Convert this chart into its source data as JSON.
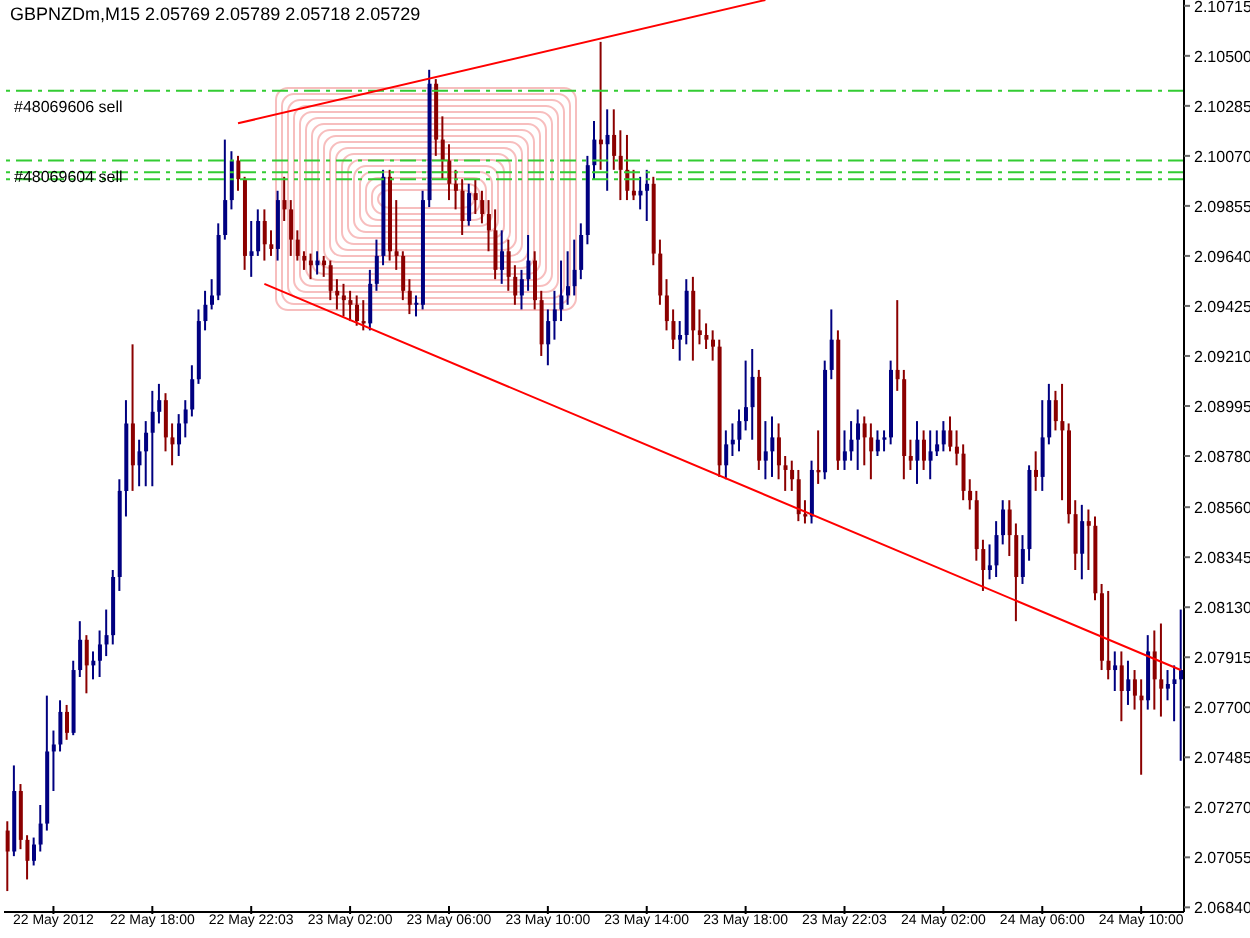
{
  "chart_data": {
    "type": "candlestick",
    "title": "GBPNZDm,M15  2.05769 2.05789 2.05718 2.05729",
    "categories": [
      null,
      null,
      null,
      null,
      null,
      null,
      null,
      "22 May 2012",
      null,
      null,
      null,
      null,
      null,
      null,
      null,
      null,
      null,
      null,
      null,
      null,
      null,
      null,
      "22 May 18:00",
      null,
      null,
      null,
      null,
      null,
      null,
      null,
      null,
      null,
      null,
      null,
      null,
      null,
      null,
      "22 May 22:03",
      null,
      null,
      null,
      null,
      null,
      null,
      null,
      null,
      null,
      null,
      null,
      null,
      null,
      null,
      "23 May 02:00",
      null,
      null,
      null,
      null,
      null,
      null,
      null,
      null,
      null,
      null,
      null,
      null,
      null,
      null,
      "23 May 06:00",
      null,
      null,
      null,
      null,
      null,
      null,
      null,
      null,
      null,
      null,
      null,
      null,
      null,
      null,
      "23 May 10:00",
      null,
      null,
      null,
      null,
      null,
      null,
      null,
      null,
      null,
      null,
      null,
      null,
      null,
      null,
      "23 May 14:00",
      null,
      null,
      null,
      null,
      null,
      null,
      null,
      null,
      null,
      null,
      null,
      null,
      null,
      null,
      "23 May 18:00",
      null,
      null,
      null,
      null,
      null,
      null,
      null,
      null,
      null,
      null,
      null,
      null,
      null,
      null,
      "23 May 22:03",
      null,
      null,
      null,
      null,
      null,
      null,
      null,
      null,
      null,
      null,
      null,
      null,
      null,
      null,
      "24 May 02:00",
      null,
      null,
      null,
      null,
      null,
      null,
      null,
      null,
      null,
      null,
      null,
      null,
      null,
      null,
      "24 May 06:00",
      null,
      null,
      null,
      null,
      null,
      null,
      null,
      null,
      null,
      null,
      null,
      null,
      null,
      null,
      "24 May 10:00",
      null,
      null,
      null,
      null,
      null,
      null
    ],
    "ohlc": [
      [
        2.0717,
        2.0721,
        2.0691,
        2.0708
      ],
      [
        2.0708,
        2.0745,
        2.0706,
        2.0734
      ],
      [
        2.0734,
        2.0737,
        2.0709,
        2.0713
      ],
      [
        2.0713,
        2.0715,
        2.0696,
        2.0704
      ],
      [
        2.0704,
        2.0714,
        2.0702,
        2.0711
      ],
      [
        2.0711,
        2.0728,
        2.0708,
        2.072
      ],
      [
        2.072,
        2.0775,
        2.0717,
        2.0751
      ],
      [
        2.0751,
        2.076,
        2.0734,
        2.0754
      ],
      [
        2.0754,
        2.0773,
        2.0751,
        2.0768
      ],
      [
        2.0768,
        2.0771,
        2.0756,
        2.0759
      ],
      [
        2.0759,
        2.079,
        2.0758,
        2.0786
      ],
      [
        2.0786,
        2.0807,
        2.0783,
        2.0799
      ],
      [
        2.0799,
        2.0801,
        2.0776,
        2.0788
      ],
      [
        2.0788,
        2.0794,
        2.0782,
        2.079
      ],
      [
        2.079,
        2.0803,
        2.0783,
        2.0797
      ],
      [
        2.0797,
        2.0812,
        2.0792,
        2.0801
      ],
      [
        2.0801,
        2.0829,
        2.0797,
        2.0826
      ],
      [
        2.0826,
        2.0868,
        2.082,
        2.0863
      ],
      [
        2.0863,
        2.0902,
        2.0852,
        2.0892
      ],
      [
        2.0892,
        2.0926,
        2.0863,
        2.0874
      ],
      [
        2.0874,
        2.0885,
        2.0865,
        2.088
      ],
      [
        2.088,
        2.0893,
        2.0865,
        2.0888
      ],
      [
        2.0888,
        2.0906,
        2.0865,
        2.0897
      ],
      [
        2.0897,
        2.0909,
        2.0892,
        2.0902
      ],
      [
        2.0902,
        2.0905,
        2.088,
        2.0886
      ],
      [
        2.0886,
        2.0892,
        2.0874,
        2.0883
      ],
      [
        2.0883,
        2.0896,
        2.0878,
        2.0892
      ],
      [
        2.0892,
        2.0902,
        2.0886,
        2.0898
      ],
      [
        2.0898,
        2.0917,
        2.0895,
        2.0911
      ],
      [
        2.0911,
        2.0941,
        2.0909,
        2.0936
      ],
      [
        2.0936,
        2.0949,
        2.0932,
        2.0943
      ],
      [
        2.0943,
        2.0954,
        2.0941,
        2.0947
      ],
      [
        2.0947,
        2.0978,
        2.0945,
        2.0973
      ],
      [
        2.0973,
        2.1014,
        2.0971,
        2.0988
      ],
      [
        2.0988,
        2.1009,
        2.0984,
        2.1005
      ],
      [
        2.1005,
        2.1007,
        2.0992,
        2.0997
      ],
      [
        2.0997,
        2.0998,
        2.0958,
        2.0964
      ],
      [
        2.0964,
        2.0979,
        2.0955,
        2.0966
      ],
      [
        2.0966,
        2.0984,
        2.0964,
        2.0979
      ],
      [
        2.0979,
        2.0984,
        2.0962,
        2.0969
      ],
      [
        2.0969,
        2.0975,
        2.0964,
        2.0967
      ],
      [
        2.0967,
        2.0992,
        2.0962,
        2.0988
      ],
      [
        2.0988,
        2.0998,
        2.0979,
        2.0984
      ],
      [
        2.0984,
        2.0988,
        2.0964,
        2.0971
      ],
      [
        2.0971,
        2.0975,
        2.0962,
        2.0964
      ],
      [
        2.0964,
        2.0966,
        2.0958,
        2.0962
      ],
      [
        2.0962,
        2.0965,
        2.0954,
        2.096
      ],
      [
        2.096,
        2.0966,
        2.0956,
        2.0962
      ],
      [
        2.0962,
        2.0964,
        2.0955,
        2.096
      ],
      [
        2.096,
        2.0962,
        2.0945,
        2.0949
      ],
      [
        2.0949,
        2.0954,
        2.0941,
        2.0947
      ],
      [
        2.0947,
        2.0952,
        2.0938,
        2.0945
      ],
      [
        2.0945,
        2.0949,
        2.0936,
        2.0943
      ],
      [
        2.0943,
        2.0947,
        2.0934,
        2.0936
      ],
      [
        2.0936,
        2.0945,
        2.0932,
        2.0935
      ],
      [
        2.0935,
        2.0958,
        2.0932,
        2.0952
      ],
      [
        2.0952,
        2.0971,
        2.0949,
        2.0964
      ],
      [
        2.0964,
        2.1001,
        2.096,
        2.0998
      ],
      [
        2.0998,
        2.1001,
        2.0962,
        2.0966
      ],
      [
        2.0966,
        2.0988,
        2.0958,
        2.0964
      ],
      [
        2.0964,
        2.0966,
        2.0945,
        2.0949
      ],
      [
        2.0949,
        2.0954,
        2.0939,
        2.0943
      ],
      [
        2.0943,
        2.0947,
        2.0938,
        2.0943
      ],
      [
        2.0943,
        2.0992,
        2.0941,
        2.0988
      ],
      [
        2.0988,
        2.1044,
        2.0985,
        2.1038
      ],
      [
        2.1038,
        2.104,
        2.1007,
        2.1014
      ],
      [
        2.1014,
        2.1024,
        2.0997,
        2.1005
      ],
      [
        2.1005,
        2.1012,
        2.0988,
        2.0995
      ],
      [
        2.0995,
        2.1001,
        2.0984,
        2.0992
      ],
      [
        2.0992,
        2.0997,
        2.0973,
        2.0979
      ],
      [
        2.0979,
        2.0995,
        2.0977,
        2.0991
      ],
      [
        2.0991,
        2.0997,
        2.0982,
        2.0988
      ],
      [
        2.0988,
        2.0992,
        2.0978,
        2.0982
      ],
      [
        2.0982,
        2.0988,
        2.0966,
        2.0975
      ],
      [
        2.0975,
        2.0984,
        2.0954,
        2.0958
      ],
      [
        2.0958,
        2.0975,
        2.0952,
        2.0966
      ],
      [
        2.0966,
        2.0971,
        2.0949,
        2.0955
      ],
      [
        2.0955,
        2.096,
        2.0943,
        2.0947
      ],
      [
        2.0947,
        2.0958,
        2.0941,
        2.0954
      ],
      [
        2.0954,
        2.0973,
        2.0949,
        2.0962
      ],
      [
        2.0962,
        2.0966,
        2.0941,
        2.0945
      ],
      [
        2.0945,
        2.0949,
        2.0921,
        2.0926
      ],
      [
        2.0926,
        2.0941,
        2.0917,
        2.0936
      ],
      [
        2.0936,
        2.0949,
        2.0928,
        2.0941
      ],
      [
        2.0941,
        2.0962,
        2.0936,
        2.0947
      ],
      [
        2.0947,
        2.0966,
        2.0943,
        2.0951
      ],
      [
        2.0951,
        2.0971,
        2.0947,
        2.0958
      ],
      [
        2.0958,
        2.0978,
        2.0954,
        2.0973
      ],
      [
        2.0973,
        2.1007,
        2.0969,
        2.1003
      ],
      [
        2.1003,
        2.1022,
        2.0997,
        2.1014
      ],
      [
        2.1014,
        2.1056,
        2.1001,
        2.1012
      ],
      [
        2.1012,
        2.1027,
        2.0992,
        2.1016
      ],
      [
        2.1016,
        2.1027,
        2.1001,
        2.1007
      ],
      [
        2.1007,
        2.1018,
        2.0988,
        2.1001
      ],
      [
        2.1001,
        2.1016,
        2.0988,
        2.0992
      ],
      [
        2.0992,
        2.1001,
        2.0988,
        2.099
      ],
      [
        2.099,
        2.0998,
        2.0984,
        2.0992
      ],
      [
        2.0992,
        2.1001,
        2.0979,
        2.0995
      ],
      [
        2.0995,
        2.0998,
        2.096,
        2.0965
      ],
      [
        2.0965,
        2.0971,
        2.0943,
        2.0947
      ],
      [
        2.0947,
        2.0954,
        2.0932,
        2.0936
      ],
      [
        2.0936,
        2.0941,
        2.0924,
        2.0928
      ],
      [
        2.0928,
        2.0936,
        2.0919,
        2.093
      ],
      [
        2.093,
        2.0954,
        2.0926,
        2.0949
      ],
      [
        2.0949,
        2.0955,
        2.0919,
        2.0932
      ],
      [
        2.0932,
        2.0941,
        2.0926,
        2.093
      ],
      [
        2.093,
        2.0935,
        2.0924,
        2.0928
      ],
      [
        2.0928,
        2.0932,
        2.0919,
        2.0925
      ],
      [
        2.0925,
        2.0928,
        2.0869,
        2.0874
      ],
      [
        2.0874,
        2.0889,
        2.0868,
        2.0883
      ],
      [
        2.0883,
        2.0892,
        2.0878,
        2.0885
      ],
      [
        2.0885,
        2.0898,
        2.088,
        2.0893
      ],
      [
        2.0893,
        2.0919,
        2.0889,
        2.0899
      ],
      [
        2.0899,
        2.0924,
        2.0885,
        2.0912
      ],
      [
        2.0912,
        2.0915,
        2.0872,
        2.0876
      ],
      [
        2.0876,
        2.0893,
        2.0868,
        2.088
      ],
      [
        2.088,
        2.0895,
        2.0869,
        2.0886
      ],
      [
        2.0886,
        2.0892,
        2.0868,
        2.0874
      ],
      [
        2.0874,
        2.0878,
        2.0863,
        2.0872
      ],
      [
        2.0872,
        2.0876,
        2.0863,
        2.0868
      ],
      [
        2.0868,
        2.0872,
        2.085,
        2.0853
      ],
      [
        2.0853,
        2.0859,
        2.0849,
        2.0852
      ],
      [
        2.0852,
        2.0876,
        2.0849,
        2.0872
      ],
      [
        2.0872,
        2.0889,
        2.0866,
        2.0871
      ],
      [
        2.0871,
        2.0919,
        2.0868,
        2.0915
      ],
      [
        2.0915,
        2.0941,
        2.0911,
        2.0928
      ],
      [
        2.0928,
        2.0932,
        2.0872,
        2.0876
      ],
      [
        2.0876,
        2.0889,
        2.0872,
        2.088
      ],
      [
        2.088,
        2.0893,
        2.0876,
        2.0885
      ],
      [
        2.0885,
        2.0898,
        2.0872,
        2.0892
      ],
      [
        2.0892,
        2.0895,
        2.0874,
        2.0886
      ],
      [
        2.0886,
        2.0892,
        2.0868,
        2.088
      ],
      [
        2.088,
        2.0889,
        2.0878,
        2.0885
      ],
      [
        2.0885,
        2.0889,
        2.088,
        2.0886
      ],
      [
        2.0886,
        2.0919,
        2.0883,
        2.0915
      ],
      [
        2.0915,
        2.0945,
        2.0906,
        2.0911
      ],
      [
        2.0911,
        2.0915,
        2.0868,
        2.0878
      ],
      [
        2.0878,
        2.0885,
        2.0872,
        2.0876
      ],
      [
        2.0876,
        2.0893,
        2.0866,
        2.0885
      ],
      [
        2.0885,
        2.0889,
        2.0872,
        2.0876
      ],
      [
        2.0876,
        2.0889,
        2.0868,
        2.088
      ],
      [
        2.088,
        2.0889,
        2.0878,
        2.0883
      ],
      [
        2.0883,
        2.0893,
        2.088,
        2.0889
      ],
      [
        2.0889,
        2.0895,
        2.088,
        2.0882
      ],
      [
        2.0882,
        2.0889,
        2.0874,
        2.0879
      ],
      [
        2.0879,
        2.0883,
        2.0859,
        2.0863
      ],
      [
        2.0863,
        2.0868,
        2.0855,
        2.0859
      ],
      [
        2.0859,
        2.0863,
        2.0833,
        2.0838
      ],
      [
        2.0838,
        2.0842,
        2.082,
        2.0829
      ],
      [
        2.0829,
        2.084,
        2.0825,
        2.0831
      ],
      [
        2.0831,
        2.085,
        2.0826,
        2.0844
      ],
      [
        2.0844,
        2.0859,
        2.084,
        2.0855
      ],
      [
        2.0855,
        2.0859,
        2.0835,
        2.0844
      ],
      [
        2.0844,
        2.0849,
        2.0807,
        2.0826
      ],
      [
        2.0826,
        2.0844,
        2.0823,
        2.0838
      ],
      [
        2.0838,
        2.0874,
        2.0833,
        2.0872
      ],
      [
        2.0872,
        2.088,
        2.0863,
        2.0869
      ],
      [
        2.0869,
        2.0902,
        2.0863,
        2.0886
      ],
      [
        2.0886,
        2.0909,
        2.0883,
        2.0902
      ],
      [
        2.0902,
        2.0906,
        2.0889,
        2.0893
      ],
      [
        2.0893,
        2.0909,
        2.0859,
        2.0889
      ],
      [
        2.0889,
        2.0892,
        2.0849,
        2.0853
      ],
      [
        2.0853,
        2.0859,
        2.0829,
        2.0836
      ],
      [
        2.0836,
        2.0857,
        2.0825,
        2.085
      ],
      [
        2.085,
        2.0855,
        2.0829,
        2.0848
      ],
      [
        2.0848,
        2.0852,
        2.0816,
        2.0819
      ],
      [
        2.0819,
        2.0823,
        2.0786,
        2.079
      ],
      [
        2.079,
        2.082,
        2.0782,
        2.0786
      ],
      [
        2.0786,
        2.0794,
        2.0777,
        2.0788
      ],
      [
        2.0788,
        2.0794,
        2.0764,
        2.0777
      ],
      [
        2.0777,
        2.079,
        2.0771,
        2.0782
      ],
      [
        2.0782,
        2.0786,
        2.0769,
        2.0775
      ],
      [
        2.0775,
        2.0782,
        2.0741,
        2.0773
      ],
      [
        2.0773,
        2.0801,
        2.0769,
        2.0794
      ],
      [
        2.0794,
        2.0803,
        2.0769,
        2.0782
      ],
      [
        2.0782,
        2.0806,
        2.0766,
        2.0778
      ],
      [
        2.0778,
        2.0786,
        2.0773,
        2.078
      ],
      [
        2.078,
        2.0788,
        2.0764,
        2.0782
      ],
      [
        2.0782,
        2.0812,
        2.0747,
        2.0786
      ]
    ],
    "colors": [
      "#8b0000",
      "#000080",
      "#8b0000",
      "#8b0000",
      "#000080",
      "#000080",
      "#000080",
      "#000080",
      "#000080",
      "#8b0000",
      "#000080",
      "#000080",
      "#8b0000",
      "#000080",
      "#000080",
      "#000080",
      "#000080",
      "#000080",
      "#000080",
      "#8b0000",
      "#000080",
      "#000080",
      "#000080",
      "#000080",
      "#8b0000",
      "#8b0000",
      "#000080",
      "#000080",
      "#000080",
      "#000080",
      "#000080",
      "#000080",
      "#000080",
      "#000080",
      "#000080",
      "#8b0000",
      "#8b0000",
      "#000080",
      "#000080",
      "#8b0000",
      "#8b0000",
      "#000080",
      "#8b0000",
      "#8b0000",
      "#8b0000",
      "#8b0000",
      "#8b0000",
      "#000080",
      "#8b0000",
      "#8b0000",
      "#8b0000",
      "#8b0000",
      "#8b0000",
      "#8b0000",
      "#8b0000",
      "#000080",
      "#000080",
      "#000080",
      "#8b0000",
      "#8b0000",
      "#8b0000",
      "#8b0000",
      "#000080",
      "#000080",
      "#000080",
      "#8b0000",
      "#8b0000",
      "#8b0000",
      "#8b0000",
      "#8b0000",
      "#000080",
      "#8b0000",
      "#8b0000",
      "#8b0000",
      "#8b0000",
      "#000080",
      "#8b0000",
      "#8b0000",
      "#000080",
      "#000080",
      "#8b0000",
      "#8b0000",
      "#000080",
      "#000080",
      "#000080",
      "#000080",
      "#000080",
      "#000080",
      "#000080",
      "#000080",
      "#8b0000",
      "#000080",
      "#8b0000",
      "#8b0000",
      "#8b0000",
      "#8b0000",
      "#000080",
      "#000080",
      "#8b0000",
      "#8b0000",
      "#8b0000",
      "#8b0000",
      "#000080",
      "#000080",
      "#8b0000",
      "#8b0000",
      "#8b0000",
      "#8b0000",
      "#8b0000",
      "#000080",
      "#000080",
      "#000080",
      "#000080",
      "#000080",
      "#8b0000",
      "#000080",
      "#000080",
      "#8b0000",
      "#8b0000",
      "#8b0000",
      "#8b0000",
      "#8b0000",
      "#000080",
      "#8b0000",
      "#000080",
      "#000080",
      "#8b0000",
      "#000080",
      "#000080",
      "#000080",
      "#8b0000",
      "#8b0000",
      "#000080",
      "#000080",
      "#000080",
      "#8b0000",
      "#8b0000",
      "#8b0000",
      "#000080",
      "#8b0000",
      "#000080",
      "#000080",
      "#000080",
      "#8b0000",
      "#8b0000",
      "#8b0000",
      "#8b0000",
      "#8b0000",
      "#8b0000",
      "#000080",
      "#000080",
      "#000080",
      "#8b0000",
      "#8b0000",
      "#000080",
      "#000080",
      "#8b0000",
      "#000080",
      "#000080",
      "#8b0000",
      "#8b0000",
      "#8b0000",
      "#8b0000",
      "#000080",
      "#8b0000",
      "#8b0000",
      "#8b0000",
      "#8b0000",
      "#000080",
      "#8b0000",
      "#000080",
      "#8b0000",
      "#8b0000",
      "#000080",
      "#8b0000",
      "#8b0000",
      "#000080",
      "#000080",
      "#000080"
    ],
    "series": [
      {
        "type": "line",
        "color": "#ff0000",
        "values": [
          null,
          null,
          null,
          null,
          null,
          null,
          null,
          null,
          null,
          null,
          null,
          null,
          null,
          null,
          null,
          null,
          null,
          null,
          null,
          null,
          null,
          null,
          null,
          null,
          null,
          null,
          null,
          null,
          null,
          null,
          null,
          null,
          null,
          null,
          null,
          2.1021,
          null,
          null,
          null,
          null,
          null,
          null,
          null,
          null,
          null,
          null,
          null,
          null,
          null,
          null,
          null,
          null,
          null,
          null,
          null,
          null,
          null,
          null,
          null,
          null,
          null,
          null,
          null,
          null,
          null,
          null,
          null,
          null,
          null,
          null,
          null,
          null,
          null,
          null,
          null,
          null,
          null,
          null,
          null,
          null,
          null,
          null,
          null,
          null,
          null,
          null,
          null,
          null,
          null,
          null,
          null,
          null,
          null,
          null,
          null,
          null,
          null,
          null,
          null,
          null,
          null,
          null,
          null,
          null,
          null,
          null,
          null,
          null,
          null,
          null,
          null,
          null,
          null,
          null,
          null,
          2.1074,
          null,
          null,
          null,
          null,
          null,
          null,
          null,
          null,
          null,
          null,
          null,
          null,
          null,
          null,
          null,
          null,
          null,
          null,
          null,
          null,
          null,
          null,
          null,
          null,
          null,
          null,
          null,
          null,
          null,
          null,
          null,
          null,
          null,
          null,
          null,
          null,
          null,
          null,
          null,
          null,
          null,
          null,
          null,
          null,
          null,
          null,
          null,
          null,
          null,
          null,
          null,
          null,
          null,
          null,
          null,
          null,
          null,
          null,
          null,
          null,
          null,
          null,
          null
        ]
      },
      {
        "type": "line",
        "color": "#ff0000",
        "values": [
          null,
          null,
          null,
          null,
          null,
          null,
          null,
          null,
          null,
          null,
          null,
          null,
          null,
          null,
          null,
          null,
          null,
          null,
          null,
          null,
          null,
          null,
          null,
          null,
          null,
          null,
          null,
          null,
          null,
          null,
          null,
          null,
          null,
          null,
          null,
          null,
          null,
          null,
          null,
          2.0952,
          null,
          null,
          null,
          null,
          null,
          null,
          null,
          null,
          null,
          null,
          null,
          null,
          null,
          null,
          null,
          null,
          null,
          null,
          null,
          null,
          null,
          null,
          null,
          null,
          null,
          null,
          null,
          null,
          null,
          null,
          null,
          null,
          null,
          null,
          null,
          null,
          null,
          null,
          null,
          null,
          null,
          null,
          null,
          null,
          null,
          null,
          null,
          null,
          null,
          null,
          null,
          null,
          null,
          null,
          null,
          null,
          null,
          null,
          null,
          null,
          null,
          null,
          null,
          null,
          null,
          null,
          null,
          null,
          null,
          null,
          null,
          null,
          null,
          null,
          null,
          null,
          null,
          null,
          null,
          null,
          null,
          null,
          null,
          null,
          null,
          null,
          null,
          null,
          null,
          null,
          null,
          null,
          null,
          null,
          null,
          null,
          null,
          null,
          null,
          null,
          null,
          null,
          null,
          null,
          null,
          null,
          null,
          null,
          null,
          null,
          null,
          null,
          null,
          null,
          null,
          null,
          null,
          null,
          null,
          null,
          null,
          null,
          null,
          null,
          null,
          null,
          null,
          null,
          null,
          null,
          null,
          null,
          null,
          null,
          null,
          null,
          null,
          null,
          2.0786
        ]
      }
    ],
    "ref_lines": [
      {
        "axis": "y",
        "value": 2.1035,
        "label": "#48069606 sell",
        "color": "#33cc33",
        "line_style": "dashed"
      },
      {
        "axis": "y",
        "value": 2.1005,
        "label": "#48069604 sell",
        "color": "#33cc33",
        "line_style": "dashed"
      },
      {
        "axis": "y",
        "value": 2.1,
        "label": null,
        "color": "#33cc33",
        "line_style": "dashed"
      },
      {
        "axis": "y",
        "value": 2.0997,
        "label": null,
        "color": "#33cc33",
        "line_style": "dashed"
      }
    ],
    "ylim": [
      2.0682,
      2.1074
    ],
    "yticks": [
      2.10715,
      {
        "value": 2.105,
        "label": "2.10500"
      },
      2.10285,
      {
        "value": 2.1007,
        "label": "2.10070"
      },
      2.09855,
      {
        "value": 2.0964,
        "label": "2.09640"
      },
      2.09425,
      {
        "value": 2.0921,
        "label": "2.09210"
      },
      2.08995,
      {
        "value": 2.0878,
        "label": "2.08780"
      },
      {
        "value": 2.0856,
        "label": "2.08560"
      },
      2.08345,
      {
        "value": 2.0813,
        "label": "2.08130"
      },
      2.07915,
      {
        "value": 2.077,
        "label": "2.07700"
      },
      2.07485,
      {
        "value": 2.0727,
        "label": "2.07270"
      },
      2.07055,
      {
        "value": 2.0684,
        "label": "2.06840"
      }
    ],
    "grid": false,
    "legend": false,
    "marker": "none"
  }
}
